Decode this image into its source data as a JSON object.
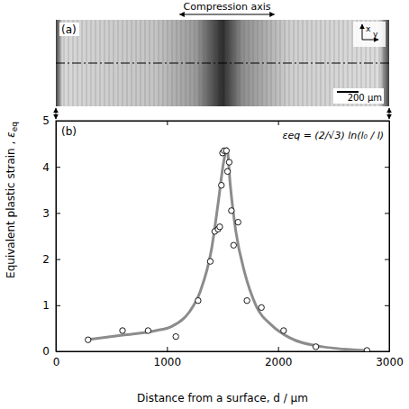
{
  "image_panel": {
    "panel_label": "(a)",
    "header": "Compression axis",
    "scale_bar": "200 μm",
    "axis_x": "x",
    "axis_y": "y"
  },
  "chart_data": {
    "type": "scatter",
    "panel_label": "(b)",
    "x_label": "Distance from a surface, d / μm",
    "y_label": "Equivalent plastic strain ,",
    "y_label_symbol": "ε",
    "y_label_subscript": "eq",
    "annotation": "εeq = (2/√3) ln(l₀ / l)",
    "xlim": [
      0,
      3000
    ],
    "xticks": [
      0,
      1000,
      2000,
      3000
    ],
    "ylim": [
      0,
      5
    ],
    "yticks": [
      0,
      1,
      2,
      3,
      4,
      5
    ],
    "series": [
      {
        "type": "scatter",
        "marker": "circle",
        "color": "#ffffff",
        "x": [
          290,
          600,
          830,
          1080,
          1280,
          1390,
          1430,
          1460,
          1475,
          1490,
          1500,
          1515,
          1535,
          1545,
          1560,
          1580,
          1600,
          1640,
          1720,
          1850,
          2050,
          2340,
          2800
        ],
        "values": [
          0.25,
          0.45,
          0.45,
          0.32,
          1.1,
          1.95,
          2.6,
          2.65,
          2.7,
          3.6,
          4.3,
          4.35,
          4.35,
          3.9,
          4.1,
          3.05,
          2.3,
          2.8,
          1.1,
          0.95,
          0.45,
          0.1,
          0.02
        ]
      },
      {
        "type": "line",
        "line_style": "solid",
        "color": "#8c8c8c",
        "x": [
          280,
          600,
          900,
          1050,
          1200,
          1300,
          1400,
          1460,
          1510,
          1540,
          1570,
          1620,
          1700,
          1800,
          1950,
          2100,
          2400,
          2800
        ],
        "values": [
          0.25,
          0.35,
          0.45,
          0.55,
          0.85,
          1.3,
          2.2,
          3.2,
          4.1,
          4.4,
          3.6,
          2.6,
          1.7,
          1.0,
          0.55,
          0.3,
          0.1,
          0.02
        ]
      }
    ]
  }
}
